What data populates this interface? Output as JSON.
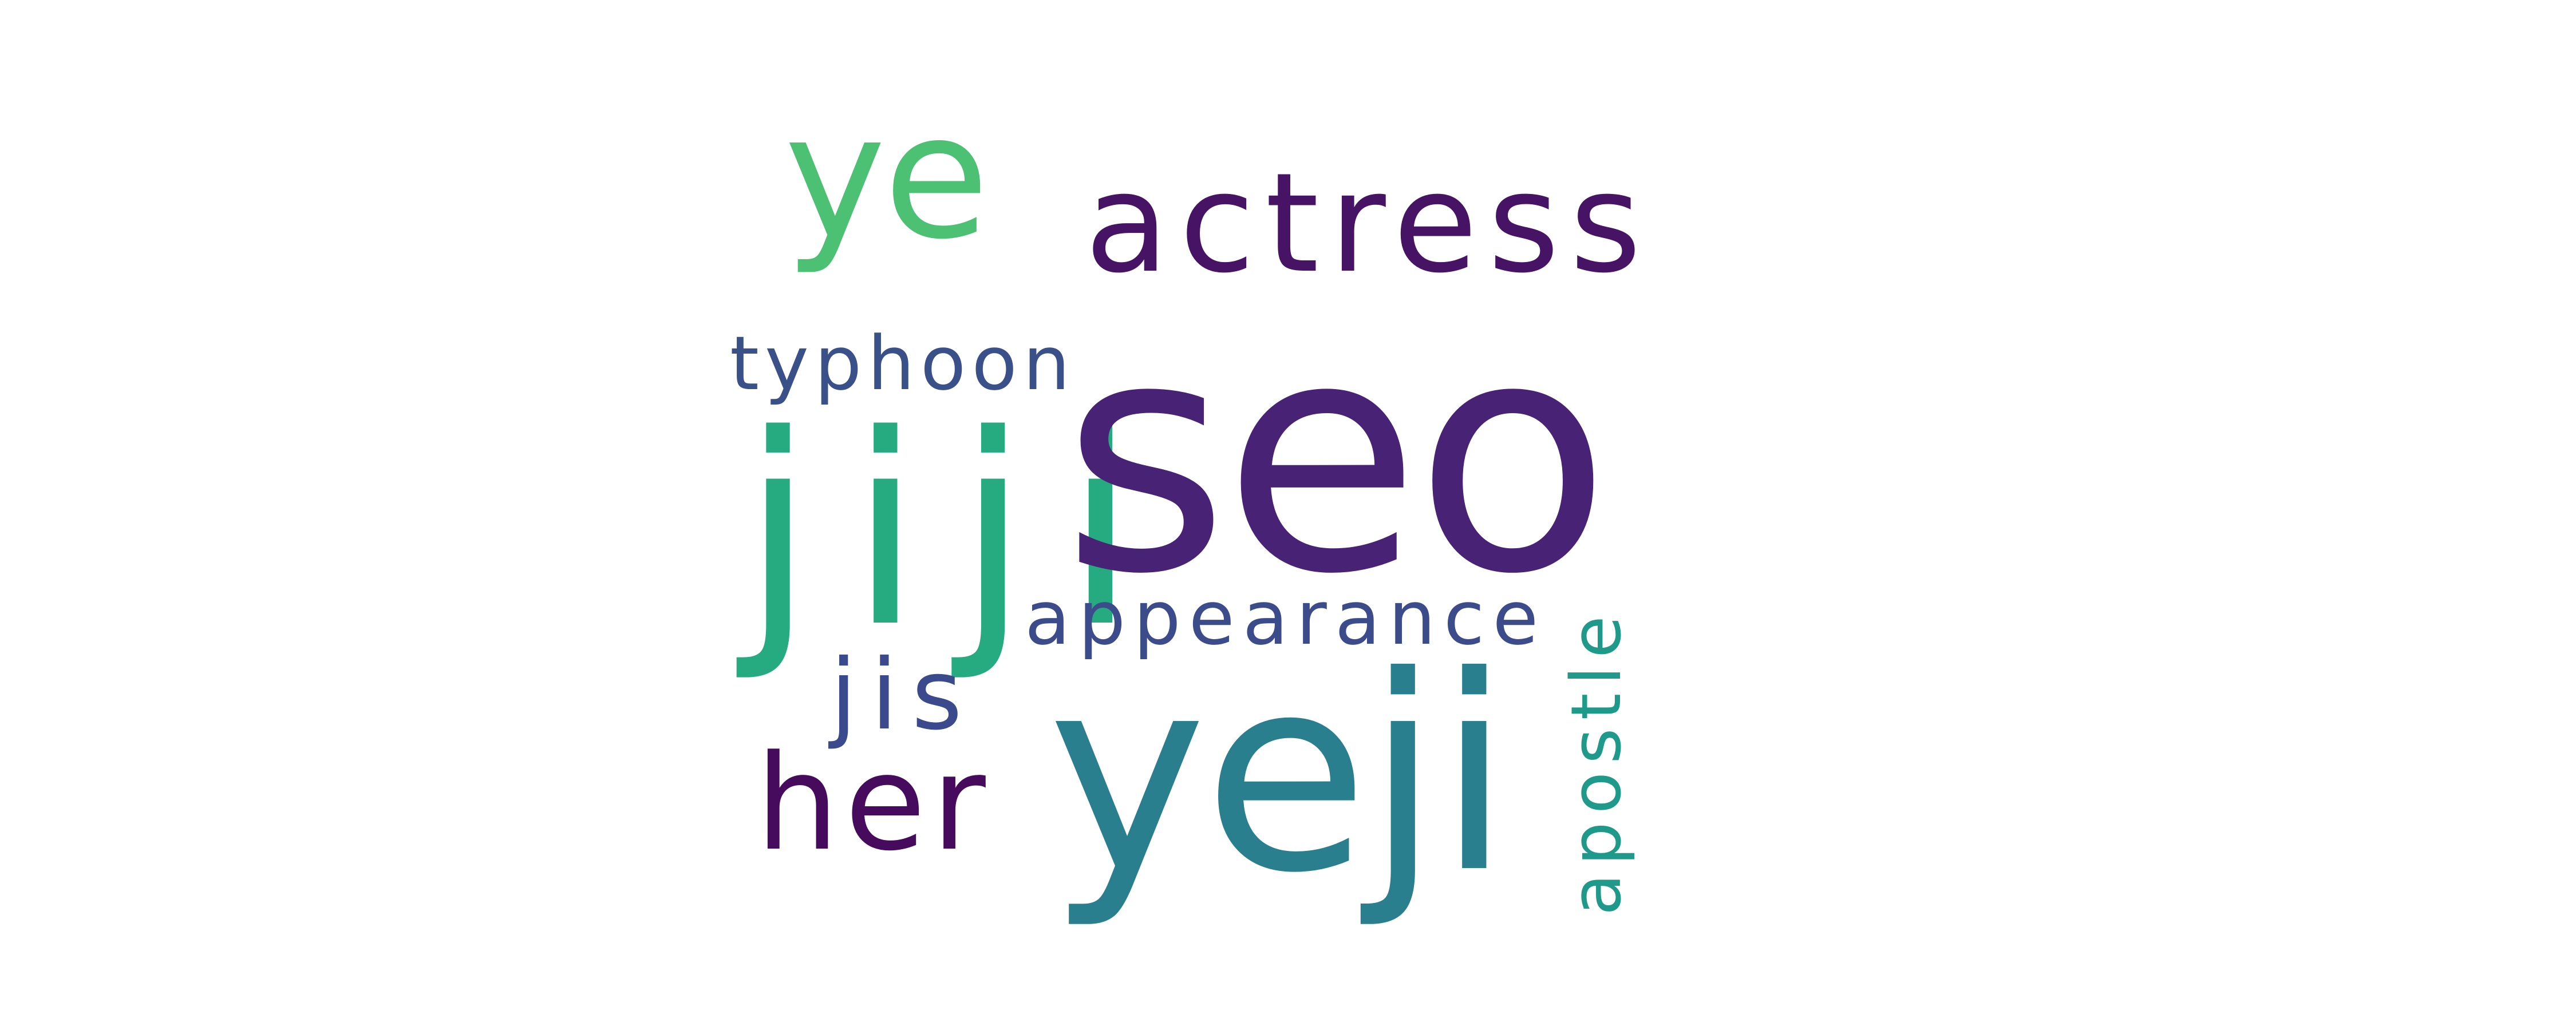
{
  "words": {
    "seo": {
      "text": "seo",
      "color": "#472275"
    },
    "yeji_mid": {
      "text": "yeji",
      "color": "#2a7f8e"
    },
    "yeji_top": {
      "text": "ye",
      "color": "#4cc073"
    },
    "actress": {
      "text": "actress",
      "color": "#471365"
    },
    "typhoon": {
      "text": "typhoon",
      "color": "#3a5089"
    },
    "jiji_big": {
      "text": "jiji",
      "color": "#26ab81"
    },
    "appearance": {
      "text": "appearance",
      "color": "#3c4b8a"
    },
    "jiji_small": {
      "text": "jis",
      "color": "#3a4a8c"
    },
    "her": {
      "text": "her",
      "color": "#460b5c"
    },
    "apostle": {
      "text": "apostle",
      "color": "#1f9a8a"
    }
  }
}
